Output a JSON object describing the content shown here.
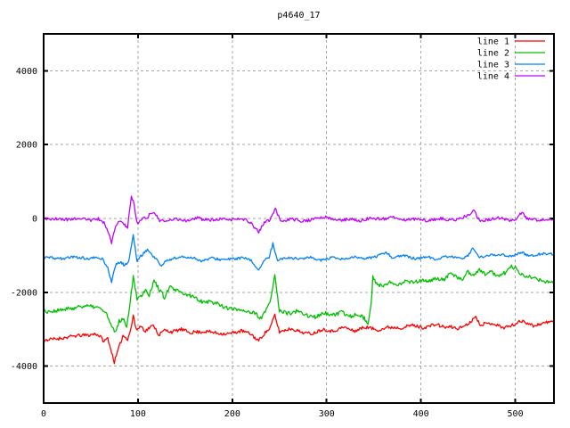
{
  "title": "p4640_17",
  "colors": {
    "background": "#ffffff",
    "border": "#000000",
    "grid": "#a6a6a6",
    "text": "#000000"
  },
  "axes": {
    "x": {
      "min": 0,
      "max": 541,
      "ticks": [
        0,
        100,
        200,
        300,
        400,
        500
      ]
    },
    "y": {
      "min": -5000,
      "max": 5000,
      "ticks": [
        4000,
        2000,
        0,
        -2000,
        -4000
      ]
    }
  },
  "legend": {
    "position": "top-right"
  },
  "chart_data": {
    "type": "line",
    "title": "p4640_17",
    "xlabel": "",
    "ylabel": "",
    "xlim": [
      0,
      541
    ],
    "ylim": [
      -5000,
      5000
    ],
    "grid": true,
    "legend_position": "top-right",
    "series": [
      {
        "name": "line 1",
        "color": "#ff0000",
        "seed": 11,
        "hf": 45,
        "lf": 25,
        "anchors": [
          [
            0,
            -3300
          ],
          [
            15,
            -3260
          ],
          [
            30,
            -3210
          ],
          [
            45,
            -3150
          ],
          [
            55,
            -3120
          ],
          [
            60,
            -3200
          ],
          [
            64,
            -3340
          ],
          [
            68,
            -3240
          ],
          [
            72,
            -3620
          ],
          [
            75,
            -3890
          ],
          [
            79,
            -3560
          ],
          [
            84,
            -3180
          ],
          [
            89,
            -3280
          ],
          [
            93,
            -2950
          ],
          [
            95,
            -2600
          ],
          [
            98,
            -3020
          ],
          [
            103,
            -2920
          ],
          [
            108,
            -3060
          ],
          [
            113,
            -2950
          ],
          [
            117,
            -2890
          ],
          [
            122,
            -3140
          ],
          [
            128,
            -3010
          ],
          [
            136,
            -3060
          ],
          [
            146,
            -3000
          ],
          [
            156,
            -3090
          ],
          [
            170,
            -3050
          ],
          [
            184,
            -3110
          ],
          [
            198,
            -3130
          ],
          [
            210,
            -3060
          ],
          [
            220,
            -3140
          ],
          [
            228,
            -3310
          ],
          [
            234,
            -3120
          ],
          [
            240,
            -2960
          ],
          [
            245,
            -2600
          ],
          [
            250,
            -3060
          ],
          [
            262,
            -3010
          ],
          [
            274,
            -3070
          ],
          [
            286,
            -3120
          ],
          [
            296,
            -2990
          ],
          [
            306,
            -3060
          ],
          [
            318,
            -2960
          ],
          [
            330,
            -3040
          ],
          [
            342,
            -2960
          ],
          [
            354,
            -3010
          ],
          [
            366,
            -2920
          ],
          [
            378,
            -2980
          ],
          [
            390,
            -2890
          ],
          [
            403,
            -2950
          ],
          [
            416,
            -2880
          ],
          [
            428,
            -2940
          ],
          [
            440,
            -2960
          ],
          [
            452,
            -2830
          ],
          [
            457,
            -2650
          ],
          [
            463,
            -2890
          ],
          [
            475,
            -2830
          ],
          [
            487,
            -2950
          ],
          [
            499,
            -2860
          ],
          [
            509,
            -2770
          ],
          [
            519,
            -2920
          ],
          [
            529,
            -2830
          ],
          [
            541,
            -2790
          ]
        ]
      },
      {
        "name": "line 2",
        "color": "#00c000",
        "seed": 22,
        "hf": 55,
        "lf": 30,
        "anchors": [
          [
            0,
            -2520
          ],
          [
            15,
            -2480
          ],
          [
            30,
            -2420
          ],
          [
            45,
            -2380
          ],
          [
            55,
            -2400
          ],
          [
            62,
            -2480
          ],
          [
            67,
            -2600
          ],
          [
            72,
            -2920
          ],
          [
            76,
            -3060
          ],
          [
            80,
            -2760
          ],
          [
            84,
            -2700
          ],
          [
            88,
            -2880
          ],
          [
            92,
            -2200
          ],
          [
            95,
            -1530
          ],
          [
            99,
            -2150
          ],
          [
            104,
            -2080
          ],
          [
            108,
            -1900
          ],
          [
            112,
            -2050
          ],
          [
            117,
            -1680
          ],
          [
            122,
            -1900
          ],
          [
            128,
            -2120
          ],
          [
            134,
            -1860
          ],
          [
            140,
            -1960
          ],
          [
            148,
            -2060
          ],
          [
            156,
            -2110
          ],
          [
            166,
            -2210
          ],
          [
            176,
            -2260
          ],
          [
            186,
            -2310
          ],
          [
            196,
            -2410
          ],
          [
            206,
            -2460
          ],
          [
            216,
            -2510
          ],
          [
            224,
            -2560
          ],
          [
            230,
            -2690
          ],
          [
            237,
            -2450
          ],
          [
            241,
            -2200
          ],
          [
            245,
            -1520
          ],
          [
            250,
            -2480
          ],
          [
            258,
            -2560
          ],
          [
            268,
            -2500
          ],
          [
            278,
            -2600
          ],
          [
            288,
            -2660
          ],
          [
            296,
            -2540
          ],
          [
            306,
            -2620
          ],
          [
            316,
            -2520
          ],
          [
            326,
            -2640
          ],
          [
            334,
            -2560
          ],
          [
            340,
            -2700
          ],
          [
            344,
            -2870
          ],
          [
            347,
            -2400
          ],
          [
            349,
            -1600
          ],
          [
            353,
            -1780
          ],
          [
            360,
            -1820
          ],
          [
            368,
            -1700
          ],
          [
            376,
            -1780
          ],
          [
            384,
            -1680
          ],
          [
            392,
            -1740
          ],
          [
            400,
            -1660
          ],
          [
            408,
            -1720
          ],
          [
            416,
            -1620
          ],
          [
            424,
            -1680
          ],
          [
            430,
            -1520
          ],
          [
            436,
            -1580
          ],
          [
            443,
            -1640
          ],
          [
            450,
            -1430
          ],
          [
            456,
            -1520
          ],
          [
            462,
            -1380
          ],
          [
            468,
            -1520
          ],
          [
            475,
            -1460
          ],
          [
            482,
            -1560
          ],
          [
            489,
            -1480
          ],
          [
            495,
            -1340
          ],
          [
            500,
            -1330
          ],
          [
            504,
            -1480
          ],
          [
            510,
            -1540
          ],
          [
            517,
            -1600
          ],
          [
            525,
            -1650
          ],
          [
            533,
            -1700
          ],
          [
            541,
            -1740
          ]
        ]
      },
      {
        "name": "line 3",
        "color": "#0080ff",
        "seed": 33,
        "hf": 35,
        "lf": 20,
        "anchors": [
          [
            0,
            -1060
          ],
          [
            15,
            -1090
          ],
          [
            30,
            -1040
          ],
          [
            45,
            -1090
          ],
          [
            56,
            -1060
          ],
          [
            63,
            -1120
          ],
          [
            68,
            -1360
          ],
          [
            72,
            -1740
          ],
          [
            76,
            -1280
          ],
          [
            81,
            -1170
          ],
          [
            86,
            -1280
          ],
          [
            90,
            -1180
          ],
          [
            95,
            -450
          ],
          [
            99,
            -1140
          ],
          [
            104,
            -1010
          ],
          [
            110,
            -850
          ],
          [
            115,
            -1010
          ],
          [
            120,
            -1110
          ],
          [
            124,
            -1300
          ],
          [
            130,
            -1150
          ],
          [
            138,
            -1060
          ],
          [
            148,
            -1030
          ],
          [
            158,
            -1070
          ],
          [
            168,
            -1150
          ],
          [
            178,
            -1080
          ],
          [
            190,
            -1120
          ],
          [
            202,
            -1100
          ],
          [
            212,
            -1080
          ],
          [
            220,
            -1150
          ],
          [
            228,
            -1390
          ],
          [
            234,
            -1160
          ],
          [
            239,
            -1060
          ],
          [
            243,
            -700
          ],
          [
            248,
            -1130
          ],
          [
            258,
            -1060
          ],
          [
            270,
            -1110
          ],
          [
            282,
            -1060
          ],
          [
            294,
            -1120
          ],
          [
            306,
            -1060
          ],
          [
            318,
            -1110
          ],
          [
            330,
            -1050
          ],
          [
            342,
            -1100
          ],
          [
            354,
            -1040
          ],
          [
            363,
            -930
          ],
          [
            370,
            -1070
          ],
          [
            382,
            -1010
          ],
          [
            394,
            -1080
          ],
          [
            406,
            -1030
          ],
          [
            418,
            -1100
          ],
          [
            430,
            -1020
          ],
          [
            442,
            -1090
          ],
          [
            450,
            -1010
          ],
          [
            455,
            -780
          ],
          [
            461,
            -1070
          ],
          [
            472,
            -1020
          ],
          [
            484,
            -980
          ],
          [
            496,
            -1040
          ],
          [
            507,
            -930
          ],
          [
            517,
            -1010
          ],
          [
            528,
            -960
          ],
          [
            541,
            -990
          ]
        ]
      },
      {
        "name": "line 4",
        "color": "#c000ff",
        "seed": 44,
        "hf": 40,
        "lf": 20,
        "anchors": [
          [
            0,
            -20
          ],
          [
            12,
            10
          ],
          [
            25,
            -40
          ],
          [
            38,
            10
          ],
          [
            50,
            -50
          ],
          [
            58,
            -10
          ],
          [
            64,
            -110
          ],
          [
            69,
            -420
          ],
          [
            72,
            -660
          ],
          [
            76,
            -240
          ],
          [
            80,
            -70
          ],
          [
            85,
            -130
          ],
          [
            89,
            -220
          ],
          [
            93,
            590
          ],
          [
            96,
            370
          ],
          [
            99,
            -150
          ],
          [
            104,
            -30
          ],
          [
            110,
            30
          ],
          [
            117,
            190
          ],
          [
            123,
            -50
          ],
          [
            130,
            -80
          ],
          [
            140,
            -10
          ],
          [
            152,
            -60
          ],
          [
            163,
            20
          ],
          [
            175,
            -60
          ],
          [
            187,
            -10
          ],
          [
            199,
            -50
          ],
          [
            209,
            -10
          ],
          [
            219,
            -110
          ],
          [
            228,
            -370
          ],
          [
            234,
            -100
          ],
          [
            240,
            -30
          ],
          [
            246,
            290
          ],
          [
            251,
            -90
          ],
          [
            262,
            -10
          ],
          [
            274,
            -60
          ],
          [
            286,
            -20
          ],
          [
            298,
            40
          ],
          [
            310,
            -50
          ],
          [
            322,
            -10
          ],
          [
            334,
            -60
          ],
          [
            346,
            0
          ],
          [
            358,
            -40
          ],
          [
            370,
            30
          ],
          [
            382,
            -40
          ],
          [
            395,
            -10
          ],
          [
            408,
            -60
          ],
          [
            420,
            -10
          ],
          [
            432,
            -40
          ],
          [
            444,
            20
          ],
          [
            451,
            90
          ],
          [
            456,
            230
          ],
          [
            462,
            -50
          ],
          [
            474,
            -20
          ],
          [
            486,
            10
          ],
          [
            497,
            -40
          ],
          [
            503,
            60
          ],
          [
            507,
            170
          ],
          [
            512,
            -30
          ],
          [
            524,
            -60
          ],
          [
            533,
            -10
          ],
          [
            541,
            -40
          ]
        ]
      }
    ]
  }
}
